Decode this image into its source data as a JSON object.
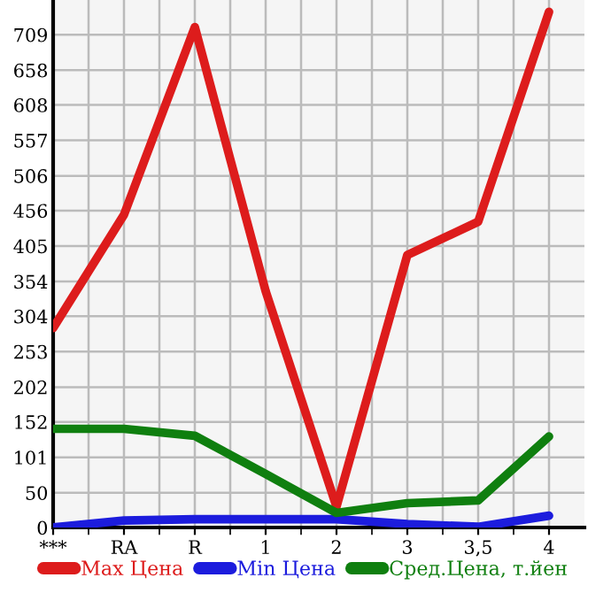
{
  "chart_data": {
    "type": "line",
    "categories": [
      "***",
      "RA",
      "R",
      "1",
      "2",
      "3",
      "3,5",
      "4"
    ],
    "series": [
      {
        "name": "Max Цена",
        "color": "#dd1c1c",
        "values": [
          287,
          450,
          720,
          340,
          30,
          392,
          440,
          742
        ]
      },
      {
        "name": "Min Цена",
        "color": "#1c1cdd",
        "values": [
          0,
          10,
          12,
          12,
          12,
          5,
          1,
          17
        ]
      },
      {
        "name": "Сред.Цена, т.йен",
        "color": "#0f7f0f",
        "values": [
          142,
          142,
          132,
          77,
          21,
          35,
          39,
          131
        ]
      }
    ],
    "ylim": [
      0,
      759
    ],
    "yticks": [
      0,
      50,
      101,
      152,
      202,
      253,
      304,
      354,
      405,
      456,
      506,
      557,
      608,
      658,
      709
    ],
    "grid": true,
    "legend": "bottom",
    "marker": "none",
    "line_style": "solid"
  }
}
